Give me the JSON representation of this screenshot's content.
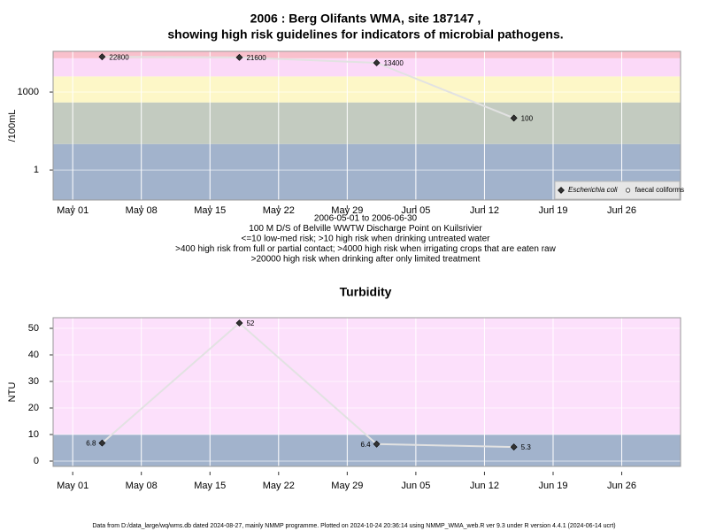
{
  "chart_data": [
    {
      "type": "line",
      "title": [
        "2006 : Berg Olifants WMA, site 187147 ,",
        "showing high risk guidelines for indicators of microbial pathogens."
      ],
      "ylabel": "/100mL",
      "ylog": true,
      "ylim": [
        0.07,
        37000
      ],
      "yticks": [
        1,
        1000
      ],
      "xlim": [
        "Apr 29",
        "Jul 02"
      ],
      "xticks": [
        "May 01",
        "May 08",
        "May 15",
        "May 22",
        "May 29",
        "Jun 05",
        "Jun 12",
        "Jun 19",
        "Jun 26"
      ],
      "x": [
        "May 04",
        "May 18",
        "Jun 01",
        "Jun 15"
      ],
      "series": [
        {
          "name": "Escherichia coli",
          "color": "#333333",
          "marker": "diamond",
          "values": [
            22800,
            21600,
            13400,
            100
          ]
        },
        {
          "name": "faecal coliforms",
          "color": "#333333",
          "marker": "circle",
          "values": [
            null,
            null,
            null,
            null
          ]
        }
      ],
      "line_color": "#e2e2e2",
      "band_edges": [
        10,
        400,
        4000,
        20000
      ],
      "band_colors": [
        "#a2b3cc",
        "#c3cbc0",
        "#fdf7c7",
        "#fbd9f8",
        "#f9c0cc"
      ],
      "grid": true,
      "legend": "lower right",
      "notes": [
        "2006-05-01 to 2006-06-30",
        "100 M D/S of Belville WWTW Discharge Point on Kuilsrivier",
        "<=10 low-med risk; >10 high risk when drinking untreated water",
        ">400 high risk from full or partial contact; >4000 high risk when irrigating crops that are eaten raw",
        ">20000 high risk when drinking after only limited treatment"
      ]
    },
    {
      "type": "line",
      "title": [
        "Turbidity"
      ],
      "ylabel": "NTU",
      "ylog": false,
      "ylim": [
        -2,
        54
      ],
      "yticks": [
        0,
        10,
        20,
        30,
        40,
        50
      ],
      "xlim": [
        "Apr 29",
        "Jul 02"
      ],
      "xticks": [
        "May 01",
        "May 08",
        "May 15",
        "May 22",
        "May 29",
        "Jun 05",
        "Jun 12",
        "Jun 19",
        "Jun 26"
      ],
      "x": [
        "May 04",
        "May 18",
        "Jun 01",
        "Jun 15"
      ],
      "series": [
        {
          "name": "Turbidity",
          "color": "#333333",
          "marker": "diamond",
          "values": [
            6.8,
            52,
            6.4,
            5.3
          ]
        }
      ],
      "line_color": "#e2e2e2",
      "band_edges": [
        10
      ],
      "band_colors": [
        "#a2b3cc",
        "#fce0fb"
      ],
      "grid": true
    }
  ],
  "footer": "Data from D:/data_large/wq/wms.db dated 2024-08-27, mainly NMMP programme. Plotted on 2024-10-24 20:36:14 using NMMP_WMA_web.R ver 9.3 under R version 4.4.1 (2024-06-14 ucrt)"
}
